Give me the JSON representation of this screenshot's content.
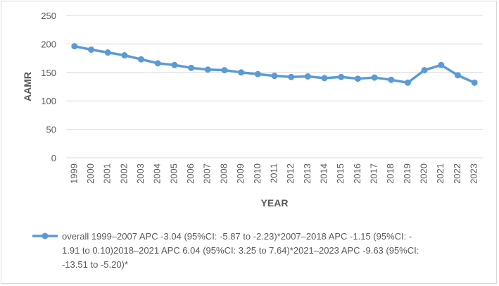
{
  "chart_data": {
    "type": "line",
    "x": [
      "1999",
      "2000",
      "2001",
      "2002",
      "2003",
      "2004",
      "2005",
      "2006",
      "2007",
      "2008",
      "2009",
      "2010",
      "2011",
      "2012",
      "2013",
      "2014",
      "2015",
      "2016",
      "2017",
      "2018",
      "2019",
      "2020",
      "2021",
      "2022",
      "2023"
    ],
    "series": [
      {
        "name": "overall 1999–2007 APC -3.04 (95%CI: -5.87 to -2.23)*2007–2018 APC -1.15 (95%CI: -1.91 to 0.10)2018–2021 APC 6.04 (95%CI: 3.25 to 7.64)*2021–2023 APC -9.63 (95%CI: -13.51 to -5.20)*",
        "legend_lines": [
          "overall 1999–2007 APC -3.04 (95%CI: -5.87 to -2.23)*2007–2018 APC -1.15 (95%CI: -",
          "1.91 to 0.10)2018–2021 APC 6.04 (95%CI: 3.25 to 7.64)*2021–2023 APC -9.63 (95%CI:",
          "-13.51 to -5.20)*"
        ],
        "values": [
          196,
          190,
          185,
          180,
          173,
          166,
          163,
          158,
          155,
          154,
          150,
          147,
          144,
          142,
          143,
          140,
          142,
          139,
          141,
          137,
          132,
          154,
          163,
          145,
          132
        ],
        "color": "#5b9bd5"
      }
    ],
    "xlabel": "YEAR",
    "ylabel": "AAMR",
    "ylim": [
      0,
      250
    ],
    "yticks": [
      0,
      50,
      100,
      150,
      200,
      250
    ],
    "grid": true,
    "legend": "bottom",
    "colors": {
      "line": "#5b9bd5",
      "grid": "#d9d9d9",
      "text": "#595959"
    }
  }
}
